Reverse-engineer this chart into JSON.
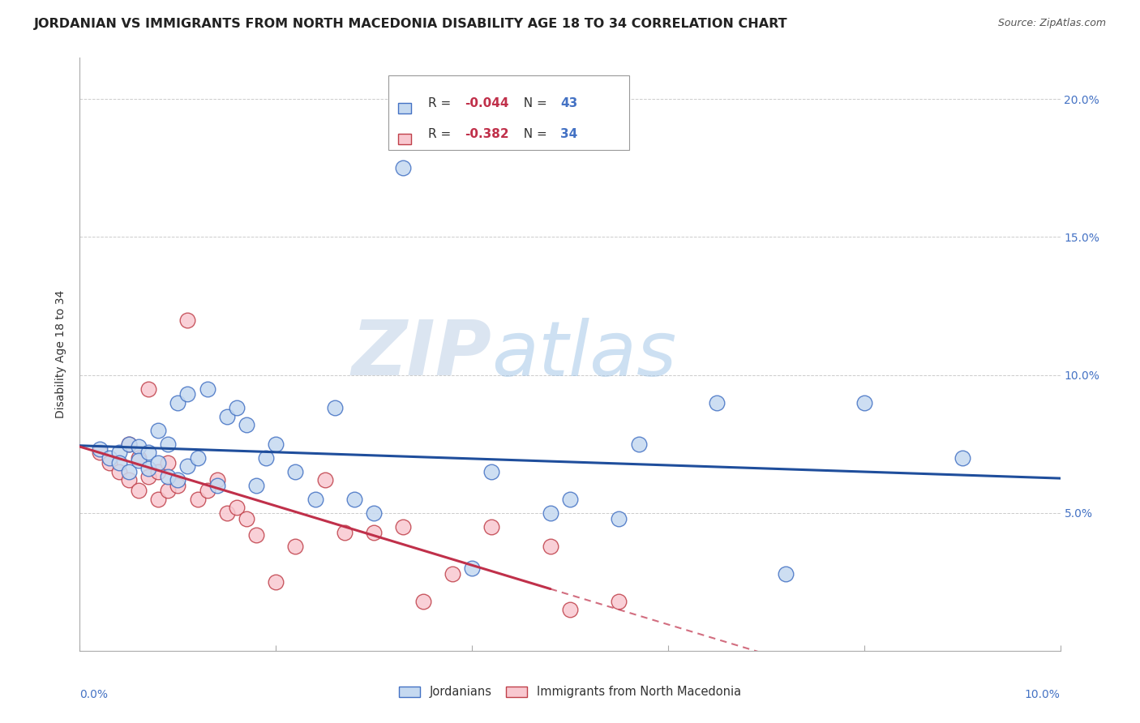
{
  "title": "JORDANIAN VS IMMIGRANTS FROM NORTH MACEDONIA DISABILITY AGE 18 TO 34 CORRELATION CHART",
  "source": "Source: ZipAtlas.com",
  "ylabel": "Disability Age 18 to 34",
  "right_yticks": [
    "5.0%",
    "10.0%",
    "15.0%",
    "20.0%"
  ],
  "right_ytick_vals": [
    0.05,
    0.1,
    0.15,
    0.2
  ],
  "xlim": [
    0.0,
    0.1
  ],
  "ylim": [
    0.0,
    0.215
  ],
  "jordanians_x": [
    0.002,
    0.003,
    0.004,
    0.004,
    0.005,
    0.005,
    0.006,
    0.006,
    0.007,
    0.007,
    0.008,
    0.008,
    0.009,
    0.009,
    0.01,
    0.01,
    0.011,
    0.011,
    0.012,
    0.013,
    0.014,
    0.015,
    0.016,
    0.017,
    0.018,
    0.019,
    0.02,
    0.022,
    0.024,
    0.026,
    0.028,
    0.03,
    0.033,
    0.04,
    0.042,
    0.048,
    0.05,
    0.055,
    0.057,
    0.065,
    0.072,
    0.08,
    0.09
  ],
  "jordanians_y": [
    0.073,
    0.07,
    0.072,
    0.068,
    0.075,
    0.065,
    0.074,
    0.069,
    0.072,
    0.066,
    0.08,
    0.068,
    0.075,
    0.063,
    0.09,
    0.062,
    0.093,
    0.067,
    0.07,
    0.095,
    0.06,
    0.085,
    0.088,
    0.082,
    0.06,
    0.07,
    0.075,
    0.065,
    0.055,
    0.088,
    0.055,
    0.05,
    0.175,
    0.03,
    0.065,
    0.05,
    0.055,
    0.048,
    0.075,
    0.09,
    0.028,
    0.09,
    0.07
  ],
  "macedonia_x": [
    0.002,
    0.003,
    0.004,
    0.005,
    0.005,
    0.006,
    0.006,
    0.007,
    0.007,
    0.008,
    0.008,
    0.009,
    0.009,
    0.01,
    0.011,
    0.012,
    0.013,
    0.014,
    0.015,
    0.016,
    0.017,
    0.018,
    0.02,
    0.022,
    0.025,
    0.027,
    0.03,
    0.033,
    0.035,
    0.038,
    0.042,
    0.048,
    0.05,
    0.055
  ],
  "macedonia_y": [
    0.072,
    0.068,
    0.065,
    0.075,
    0.062,
    0.07,
    0.058,
    0.095,
    0.063,
    0.065,
    0.055,
    0.068,
    0.058,
    0.06,
    0.12,
    0.055,
    0.058,
    0.062,
    0.05,
    0.052,
    0.048,
    0.042,
    0.025,
    0.038,
    0.062,
    0.043,
    0.043,
    0.045,
    0.018,
    0.028,
    0.045,
    0.038,
    0.015,
    0.018
  ],
  "jordanians_color": "#c5d9f0",
  "jordanians_edge_color": "#4472c4",
  "macedonia_color": "#f8c8d0",
  "macedonia_edge_color": "#c0404a",
  "trend_jordan_color": "#1f4e9c",
  "trend_macedonia_color": "#c0304a",
  "R_jordan": "-0.044",
  "N_jordan": "43",
  "R_macedonia": "-0.382",
  "N_macedonia": "34",
  "watermark_zip": "ZIP",
  "watermark_atlas": "atlas",
  "legend_label_1": "Jordanians",
  "legend_label_2": "Immigrants from North Macedonia",
  "title_fontsize": 11.5,
  "axis_label_fontsize": 10,
  "tick_fontsize": 10,
  "source_fontsize": 9,
  "background_color": "#ffffff",
  "grid_color": "#cccccc"
}
